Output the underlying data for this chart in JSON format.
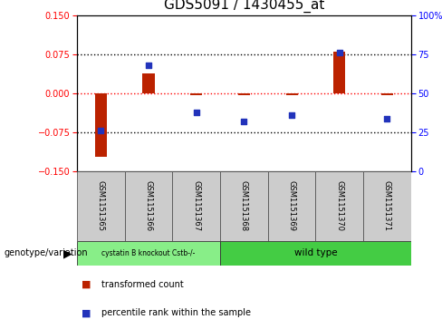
{
  "title": "GDS5091 / 1430455_at",
  "samples": [
    "GSM1151365",
    "GSM1151366",
    "GSM1151367",
    "GSM1151368",
    "GSM1151369",
    "GSM1151370",
    "GSM1151371"
  ],
  "bar_values": [
    -0.122,
    0.038,
    -0.003,
    -0.003,
    -0.003,
    0.08,
    -0.003
  ],
  "percentile_values": [
    26,
    68,
    38,
    32,
    36,
    76,
    34
  ],
  "ylim_left": [
    -0.15,
    0.15
  ],
  "ylim_right": [
    0,
    100
  ],
  "yticks_left": [
    -0.15,
    -0.075,
    0,
    0.075,
    0.15
  ],
  "yticks_right": [
    0,
    25,
    50,
    75,
    100
  ],
  "hlines": [
    0.075,
    0,
    -0.075
  ],
  "bar_color": "#bb2200",
  "dot_color": "#2233bb",
  "group1_label": "cystatin B knockout Cstb-/-",
  "group2_label": "wild type",
  "group1_count": 3,
  "group2_count": 4,
  "group1_color": "#88ee88",
  "group2_color": "#44cc44",
  "genotype_label": "genotype/variation",
  "legend_bar_label": "transformed count",
  "legend_dot_label": "percentile rank within the sample",
  "background_color": "#ffffff",
  "plot_bg": "#ffffff",
  "title_fontsize": 11,
  "tick_fontsize": 7,
  "sample_fontsize": 6,
  "bar_width": 0.25
}
